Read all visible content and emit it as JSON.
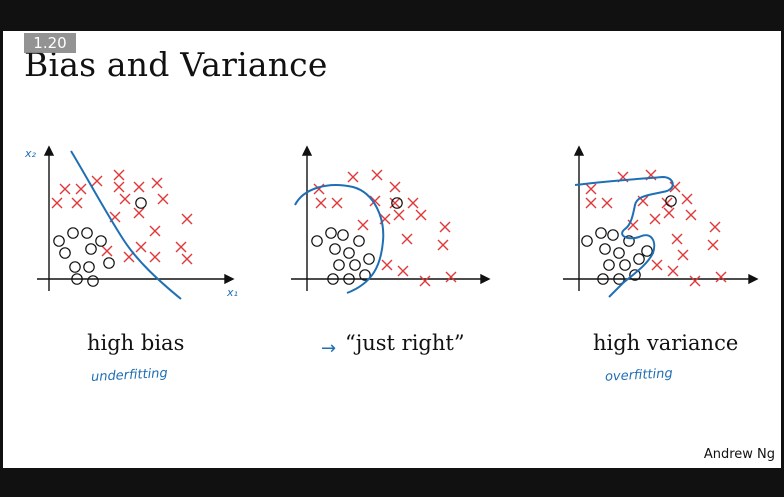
{
  "slide": {
    "badge": "1.20",
    "title": "Bias and Variance",
    "credit": "Andrew Ng"
  },
  "panels": [
    {
      "id": "left",
      "caption": "high bias",
      "note": "underfitting",
      "x_axis_label": "x₁",
      "y_axis_label": "x₂"
    },
    {
      "id": "mid",
      "caption": "“just right”",
      "note_arrow": "→"
    },
    {
      "id": "right",
      "caption": "high variance",
      "note": "overfitting"
    }
  ],
  "colors": {
    "cross": "#e0393b",
    "circle": "#111111",
    "boundary": "#1f6fb5",
    "axis": "#111111"
  }
}
